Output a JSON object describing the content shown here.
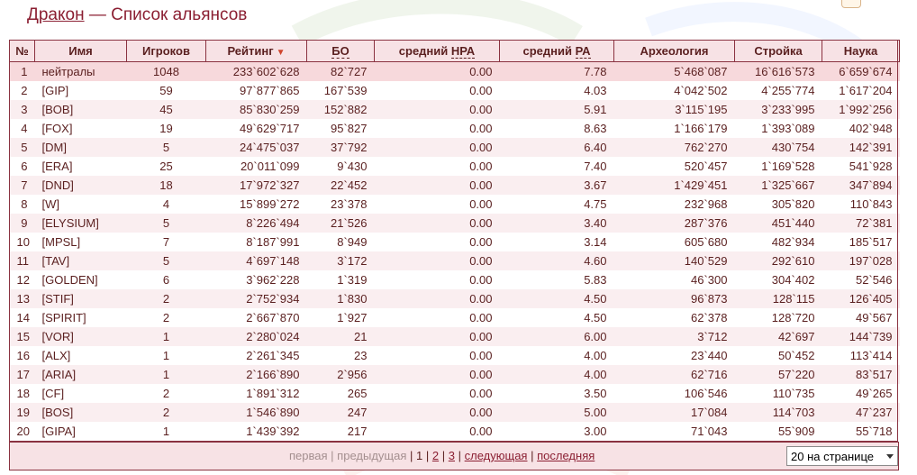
{
  "header": {
    "link": "Дракон",
    "rest": " — Список альянсов"
  },
  "columns": {
    "num": "№",
    "name": "Имя",
    "players": "Игроков",
    "rating": "Рейтинг",
    "sort_arrow": "▼",
    "bo": "БО",
    "npa_prefix": "средний ",
    "npa_abbr": "НРА",
    "pa_prefix": "средний ",
    "pa_abbr": "РА",
    "arch": "Археология",
    "build": "Стройка",
    "science": "Наука"
  },
  "rows": [
    {
      "num": "1",
      "name": "нейтралы",
      "players": "1048",
      "rating": "233`602`628",
      "bo": "82`727",
      "npa": "0.00",
      "pa": "7.78",
      "arch": "5`468`087",
      "build": "16`616`573",
      "science": "6`659`674"
    },
    {
      "num": "2",
      "name": "[GIP]",
      "players": "59",
      "rating": "97`877`865",
      "bo": "167`539",
      "npa": "0.00",
      "pa": "4.03",
      "arch": "4`042`502",
      "build": "4`255`774",
      "science": "1`617`204"
    },
    {
      "num": "3",
      "name": "[BOB]",
      "players": "45",
      "rating": "85`830`259",
      "bo": "152`882",
      "npa": "0.00",
      "pa": "5.91",
      "arch": "3`115`195",
      "build": "3`233`995",
      "science": "1`992`256"
    },
    {
      "num": "4",
      "name": "[FOX]",
      "players": "19",
      "rating": "49`629`717",
      "bo": "95`827",
      "npa": "0.00",
      "pa": "8.63",
      "arch": "1`166`179",
      "build": "1`393`089",
      "science": "402`948"
    },
    {
      "num": "5",
      "name": "[DM]",
      "players": "5",
      "rating": "24`475`037",
      "bo": "37`792",
      "npa": "0.00",
      "pa": "6.40",
      "arch": "762`270",
      "build": "430`754",
      "science": "142`391"
    },
    {
      "num": "6",
      "name": "[ERA]",
      "players": "25",
      "rating": "20`011`099",
      "bo": "9`430",
      "npa": "0.00",
      "pa": "7.40",
      "arch": "520`457",
      "build": "1`169`528",
      "science": "541`928"
    },
    {
      "num": "7",
      "name": "[DND]",
      "players": "18",
      "rating": "17`972`327",
      "bo": "22`452",
      "npa": "0.00",
      "pa": "3.67",
      "arch": "1`429`451",
      "build": "1`325`667",
      "science": "347`894"
    },
    {
      "num": "8",
      "name": "[W]",
      "players": "4",
      "rating": "15`899`272",
      "bo": "23`378",
      "npa": "0.00",
      "pa": "4.75",
      "arch": "232`968",
      "build": "305`820",
      "science": "110`843"
    },
    {
      "num": "9",
      "name": "[ELYSIUM]",
      "players": "5",
      "rating": "8`226`494",
      "bo": "21`526",
      "npa": "0.00",
      "pa": "3.40",
      "arch": "287`376",
      "build": "451`440",
      "science": "72`381"
    },
    {
      "num": "10",
      "name": "[MPSL]",
      "players": "7",
      "rating": "8`187`991",
      "bo": "8`949",
      "npa": "0.00",
      "pa": "3.14",
      "arch": "605`680",
      "build": "482`934",
      "science": "185`517"
    },
    {
      "num": "11",
      "name": "[TAV]",
      "players": "5",
      "rating": "4`697`148",
      "bo": "3`172",
      "npa": "0.00",
      "pa": "4.60",
      "arch": "140`529",
      "build": "292`610",
      "science": "197`028"
    },
    {
      "num": "12",
      "name": "[GOLDEN]",
      "players": "6",
      "rating": "3`962`228",
      "bo": "1`319",
      "npa": "0.00",
      "pa": "5.83",
      "arch": "46`300",
      "build": "304`402",
      "science": "52`546"
    },
    {
      "num": "13",
      "name": "[STIF]",
      "players": "2",
      "rating": "2`752`934",
      "bo": "1`830",
      "npa": "0.00",
      "pa": "4.50",
      "arch": "96`873",
      "build": "128`115",
      "science": "126`405"
    },
    {
      "num": "14",
      "name": "[SPIRIT]",
      "players": "2",
      "rating": "2`667`870",
      "bo": "1`927",
      "npa": "0.00",
      "pa": "4.50",
      "arch": "62`378",
      "build": "128`720",
      "science": "49`567"
    },
    {
      "num": "15",
      "name": "[VOR]",
      "players": "1",
      "rating": "2`280`024",
      "bo": "21",
      "npa": "0.00",
      "pa": "6.00",
      "arch": "3`712",
      "build": "42`697",
      "science": "144`739"
    },
    {
      "num": "16",
      "name": "[ALX]",
      "players": "1",
      "rating": "2`261`345",
      "bo": "23",
      "npa": "0.00",
      "pa": "4.00",
      "arch": "23`440",
      "build": "50`452",
      "science": "113`414"
    },
    {
      "num": "17",
      "name": "[ARIA]",
      "players": "1",
      "rating": "2`166`890",
      "bo": "2`956",
      "npa": "0.00",
      "pa": "4.00",
      "arch": "62`716",
      "build": "57`220",
      "science": "83`517"
    },
    {
      "num": "18",
      "name": "[CF]",
      "players": "2",
      "rating": "1`891`312",
      "bo": "265",
      "npa": "0.00",
      "pa": "3.50",
      "arch": "106`546",
      "build": "110`735",
      "science": "49`265"
    },
    {
      "num": "19",
      "name": "[BOS]",
      "players": "2",
      "rating": "1`546`890",
      "bo": "247",
      "npa": "0.00",
      "pa": "5.00",
      "arch": "17`084",
      "build": "114`703",
      "science": "47`237"
    },
    {
      "num": "20",
      "name": "[GIPA]",
      "players": "1",
      "rating": "1`439`392",
      "bo": "217",
      "npa": "0.00",
      "pa": "3.00",
      "arch": "71`043",
      "build": "55`909",
      "science": "55`718"
    }
  ],
  "pager": {
    "first": "первая",
    "prev": "предыдущая",
    "sep": "|",
    "pages": [
      "1",
      "2",
      "3"
    ],
    "next": "следующая",
    "last": "последняя"
  },
  "per_page": {
    "selected": "20 на странице"
  },
  "colors": {
    "accent": "#8b1f32",
    "header_bg": "#f7e2e5",
    "row_alt": "#faeef0",
    "border": "#8a3240"
  }
}
